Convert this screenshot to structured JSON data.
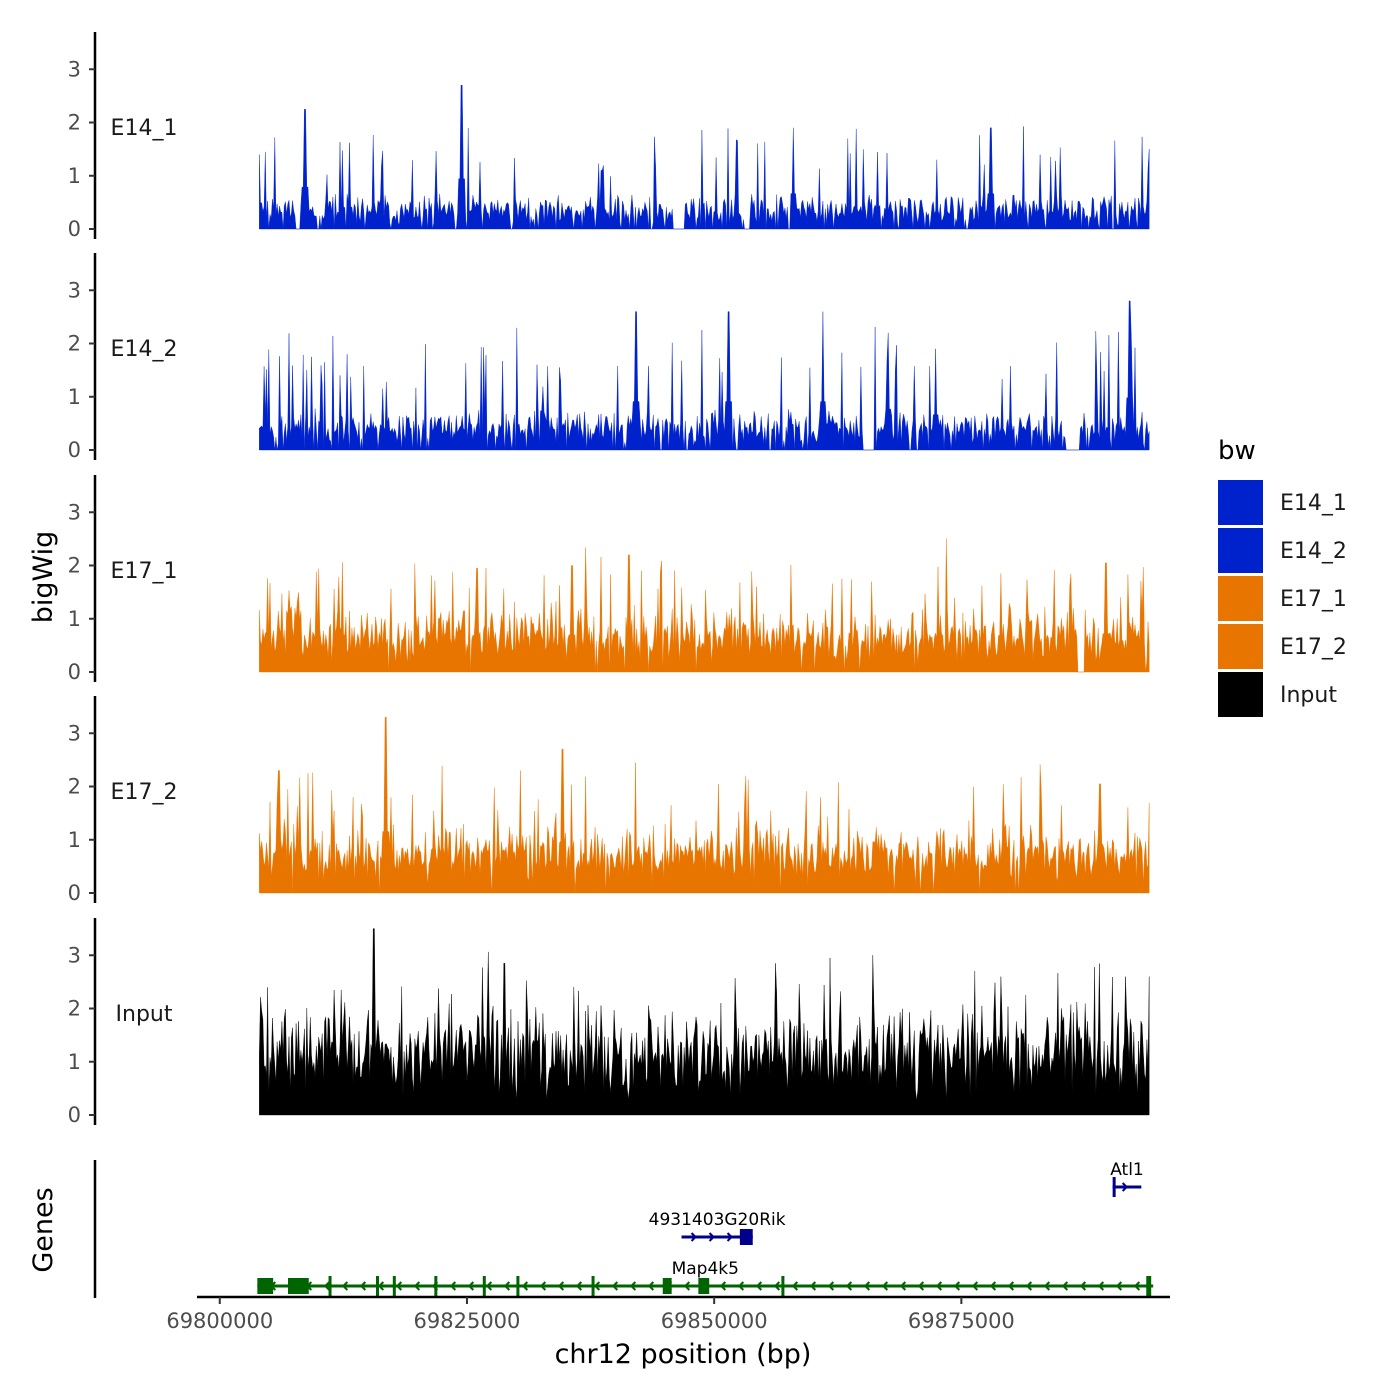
{
  "chart_data": {
    "type": "area",
    "title": "",
    "ylabel": "bigWig",
    "xlabel": "chr12 position (bp)",
    "genes_label": "Genes",
    "x_range_bp": [
      69798000,
      69896000
    ],
    "data_range_bp": [
      69804000,
      69894000
    ],
    "y_ticks": [
      0,
      1,
      2,
      3
    ],
    "ylim": [
      0,
      3.7
    ],
    "x_ticks": [
      69800000,
      69825000,
      69850000,
      69875000
    ],
    "x_tick_labels": [
      "69800000",
      "69825000",
      "69850000",
      "69875000"
    ],
    "legend": {
      "title": "bw",
      "placement": "right",
      "entries": [
        {
          "name": "E14_1",
          "color": "#0022CC"
        },
        {
          "name": "E14_2",
          "color": "#0022CC"
        },
        {
          "name": "E17_1",
          "color": "#E87500"
        },
        {
          "name": "E17_2",
          "color": "#E87500"
        },
        {
          "name": "Input",
          "color": "#000000"
        }
      ]
    },
    "tracks": [
      {
        "name": "E14_1",
        "color": "#0022CC",
        "baseline": 0.25,
        "noise": 0.35,
        "spike_prob": 0.07,
        "spike_height": 1.3,
        "gap_prob": 0.1,
        "seed": 11,
        "peaks": [
          [
            69803955,
            1.4
          ],
          [
            69808600,
            2.25
          ],
          [
            69824450,
            2.7
          ],
          [
            69838600,
            1.1
          ],
          [
            69858000,
            1.9
          ],
          [
            69878000,
            1.9
          ],
          [
            69894000,
            1.5
          ]
        ],
        "gaps": [
          [
            69846000,
            69847000
          ],
          [
            69853000,
            69853600
          ]
        ]
      },
      {
        "name": "E14_2",
        "color": "#0022CC",
        "baseline": 0.3,
        "noise": 0.4,
        "spike_prob": 0.08,
        "spike_height": 1.5,
        "gap_prob": 0.08,
        "seed": 23,
        "peaks": [
          [
            69842100,
            2.6
          ],
          [
            69851500,
            2.6
          ],
          [
            69861000,
            2.6
          ],
          [
            69867600,
            2.2
          ],
          [
            69892000,
            2.8
          ],
          [
            69872400,
            1.9
          ]
        ],
        "gaps": [
          [
            69865000,
            69866200
          ],
          [
            69885500,
            69887000
          ]
        ]
      },
      {
        "name": "E17_1",
        "color": "#E87500",
        "baseline": 0.55,
        "noise": 0.55,
        "spike_prob": 0.08,
        "spike_height": 1.1,
        "gap_prob": 0.02,
        "seed": 37,
        "peaks": [
          [
            69841400,
            2.2
          ],
          [
            69835600,
            2.0
          ],
          [
            69826000,
            1.95
          ],
          [
            69889600,
            2.05
          ],
          [
            69879000,
            1.85
          ]
        ],
        "gaps": [
          [
            69886800,
            69887500
          ]
        ]
      },
      {
        "name": "E17_2",
        "color": "#E87500",
        "baseline": 0.6,
        "noise": 0.55,
        "spike_prob": 0.08,
        "spike_height": 1.2,
        "gap_prob": 0.02,
        "seed": 51,
        "peaks": [
          [
            69816800,
            3.3
          ],
          [
            69834700,
            2.7
          ],
          [
            69806000,
            2.3
          ],
          [
            69830400,
            2.3
          ],
          [
            69853200,
            2.2
          ],
          [
            69889000,
            2.05
          ]
        ],
        "gaps": []
      },
      {
        "name": "Input",
        "color": "#000000",
        "baseline": 1.05,
        "noise": 0.75,
        "spike_prob": 0.07,
        "spike_height": 1.1,
        "gap_prob": 0.0,
        "seed": 67,
        "peaks": [
          [
            69815600,
            3.5
          ],
          [
            69828800,
            2.85
          ],
          [
            69856200,
            2.85
          ],
          [
            69879000,
            2.6
          ],
          [
            69891600,
            2.6
          ],
          [
            69894000,
            2.6
          ]
        ],
        "gaps": []
      }
    ],
    "genes": [
      {
        "name": "Map4k5",
        "color": "#006400",
        "strand": "-",
        "start": 69803800,
        "end": 69894400,
        "row": 0,
        "exons": [
          [
            69803800,
            69805400
          ],
          [
            69806900,
            69809000
          ],
          [
            69811000,
            69811300
          ],
          [
            69815800,
            69816100
          ],
          [
            69817500,
            69817800
          ],
          [
            69821700,
            69822000
          ],
          [
            69826600,
            69826900
          ],
          [
            69830000,
            69830300
          ],
          [
            69837600,
            69837900
          ],
          [
            69844800,
            69845700
          ],
          [
            69848400,
            69849500
          ],
          [
            69856800,
            69857100
          ],
          [
            69893700,
            69894200
          ]
        ]
      },
      {
        "name": "4931403G20Rik",
        "color": "#00008B",
        "strand": "+",
        "start": 69846700,
        "end": 69853900,
        "row": 1,
        "exons": [
          [
            69852600,
            69853900
          ]
        ]
      },
      {
        "name": "Atl1",
        "color": "#00008B",
        "strand": "+",
        "start": 69890300,
        "end": 69893200,
        "row": 2,
        "exons": [
          [
            69890300,
            69890500
          ]
        ]
      }
    ]
  }
}
